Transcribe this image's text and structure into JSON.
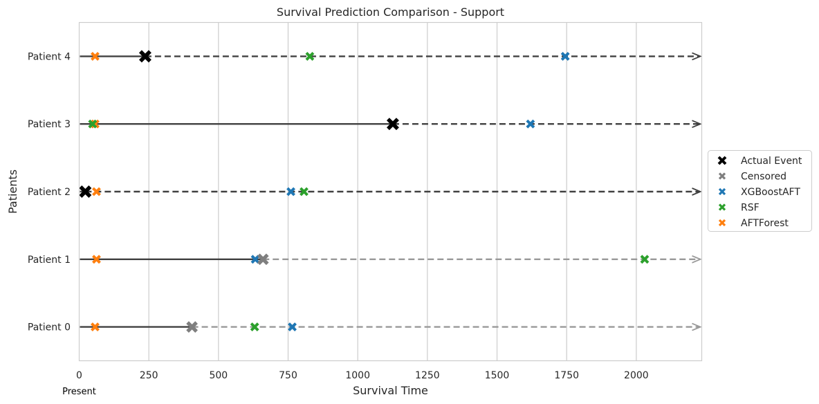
{
  "chart_data": {
    "type": "scatter",
    "title": "Survival Prediction Comparison - Support",
    "xlabel": "Survival Time",
    "ylabel": "Patients",
    "xlim": [
      0,
      2235
    ],
    "x_ticks": [
      0,
      250,
      500,
      750,
      1000,
      1250,
      1500,
      1750,
      2000
    ],
    "grid": "vertical",
    "legend_position": "right",
    "present_label": "Present",
    "colors": {
      "actual": "#000000",
      "censored": "#7f7f7f",
      "XGBoostAFT": "#1f77b4",
      "RSF": "#2ca02c",
      "AFTForest": "#ff7f0e",
      "line": "#404040",
      "dashed_event": "#404040",
      "dashed_censored": "#999999"
    },
    "legend": [
      "Actual Event",
      "Censored",
      "XGBoostAFT",
      "RSF",
      "AFTForest"
    ],
    "patients": [
      {
        "label": "Patient 0",
        "time": 405,
        "event": false,
        "XGBoostAFT": 765,
        "RSF": 630,
        "AFTForest": 57
      },
      {
        "label": "Patient 1",
        "time": 660,
        "event": false,
        "XGBoostAFT": 632,
        "RSF": 2030,
        "AFTForest": 62
      },
      {
        "label": "Patient 2",
        "time": 22,
        "event": true,
        "XGBoostAFT": 760,
        "RSF": 807,
        "AFTForest": 62
      },
      {
        "label": "Patient 3",
        "time": 1126,
        "event": true,
        "XGBoostAFT": 1620,
        "RSF": 48,
        "AFTForest": 57
      },
      {
        "label": "Patient 4",
        "time": 237,
        "event": true,
        "XGBoostAFT": 1745,
        "RSF": 828,
        "AFTForest": 57
      }
    ]
  }
}
